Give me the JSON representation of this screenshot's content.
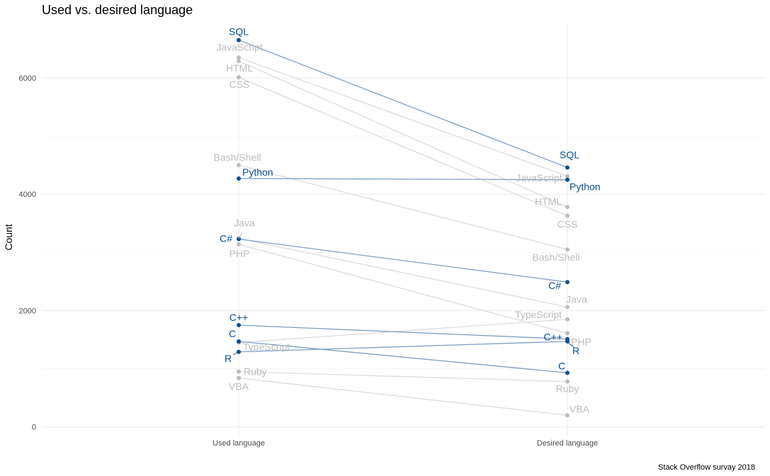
{
  "chart_data": {
    "type": "line",
    "title": "Used vs. desired language",
    "ylabel": "Count",
    "xlabel": "",
    "caption": "Stack Overflow survay 2018",
    "categories": [
      "Used language",
      "Desired language"
    ],
    "ylim": [
      -150,
      6950
    ],
    "yticks": [
      0,
      2000,
      4000,
      6000
    ],
    "grid": true,
    "colors": {
      "highlight": "#0b4f8c",
      "muted": "#bdbdbd",
      "highlight_line": "#7f9fc3",
      "muted_line": "#dddddd"
    },
    "series": [
      {
        "name": "SQL",
        "values": [
          6650,
          4460
        ],
        "highlight": true
      },
      {
        "name": "JavaScript",
        "values": [
          6350,
          4310
        ],
        "highlight": false
      },
      {
        "name": "HTML",
        "values": [
          6290,
          3780
        ],
        "highlight": false
      },
      {
        "name": "CSS",
        "values": [
          6010,
          3630
        ],
        "highlight": false
      },
      {
        "name": "Bash/Shell",
        "values": [
          4500,
          3050
        ],
        "highlight": false
      },
      {
        "name": "Python",
        "values": [
          4270,
          4250
        ],
        "highlight": true
      },
      {
        "name": "Java",
        "values": [
          3240,
          2060
        ],
        "highlight": false
      },
      {
        "name": "C#",
        "values": [
          3230,
          2490
        ],
        "highlight": true
      },
      {
        "name": "PHP",
        "values": [
          3140,
          1610
        ],
        "highlight": false
      },
      {
        "name": "C++",
        "values": [
          1750,
          1510
        ],
        "highlight": true
      },
      {
        "name": "C",
        "values": [
          1470,
          930
        ],
        "highlight": true
      },
      {
        "name": "TypeScript",
        "values": [
          1450,
          1850
        ],
        "highlight": false
      },
      {
        "name": "R",
        "values": [
          1290,
          1470
        ],
        "highlight": true
      },
      {
        "name": "Ruby",
        "values": [
          950,
          780
        ],
        "highlight": false
      },
      {
        "name": "VBA",
        "values": [
          840,
          200
        ],
        "highlight": false
      }
    ]
  }
}
